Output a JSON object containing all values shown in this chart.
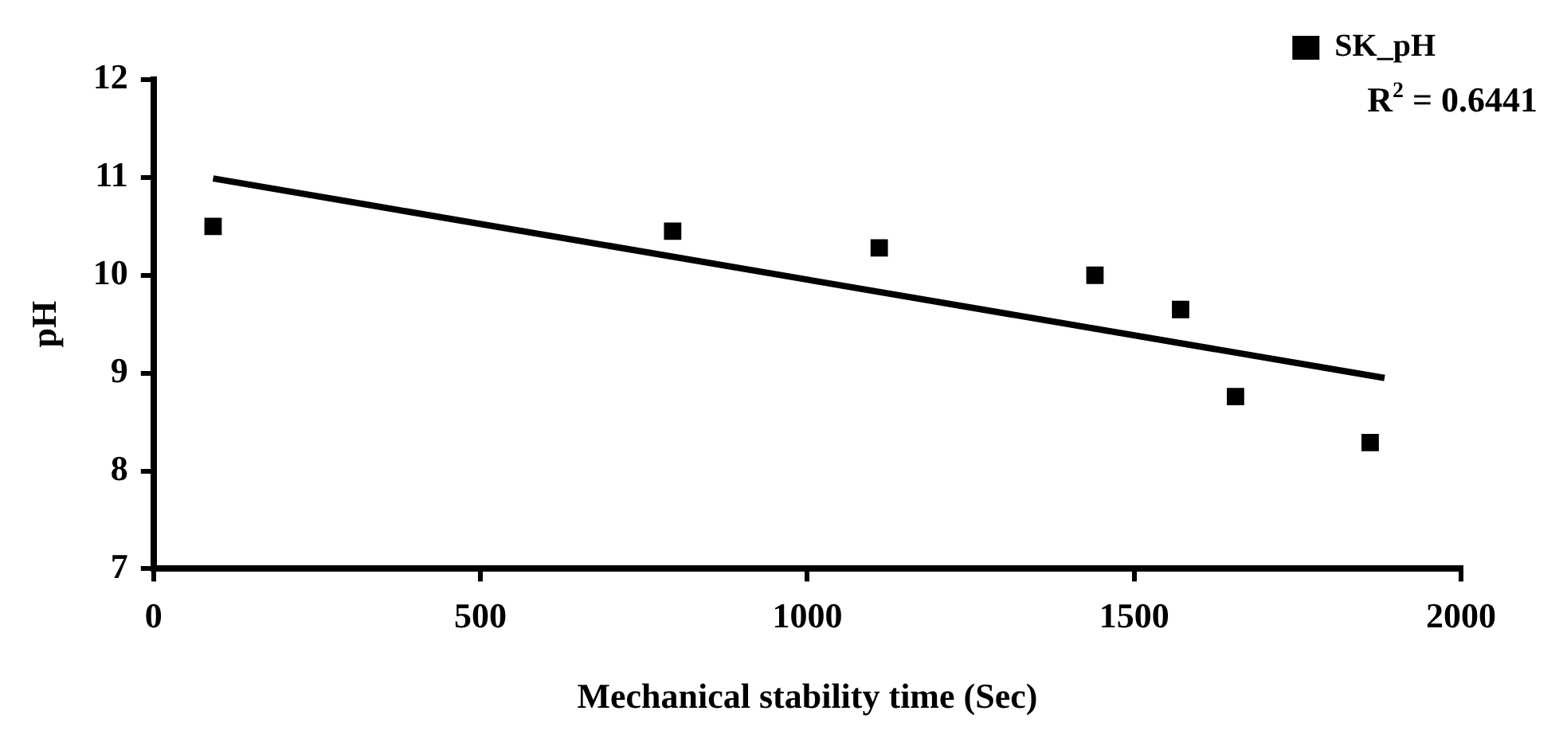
{
  "chart_data": {
    "type": "scatter",
    "xlabel": "Mechanical stability time (Sec)",
    "ylabel": "pH",
    "xlim": [
      0,
      2000
    ],
    "xticks": [
      0,
      500,
      1000,
      1500,
      2000
    ],
    "ylim": [
      7,
      12
    ],
    "yticks": [
      7,
      8,
      9,
      10,
      11,
      12
    ],
    "grid": false,
    "legend": "top right",
    "marker": "square",
    "series": [
      {
        "name": "SK_pH",
        "color": "#000000",
        "x": [
          91,
          794,
          1110,
          1440,
          1571,
          1655,
          1861
        ],
        "values": [
          10.5,
          10.45,
          10.28,
          10.0,
          9.65,
          8.76,
          8.29
        ]
      },
      {
        "type": "line",
        "color": "#000000",
        "marker": "none",
        "line_style": "solid",
        "x": [
          91,
          1883
        ],
        "values": [
          10.99,
          8.95
        ]
      }
    ],
    "annotations": [
      "R$^{2}$ = 0.6441"
    ]
  }
}
